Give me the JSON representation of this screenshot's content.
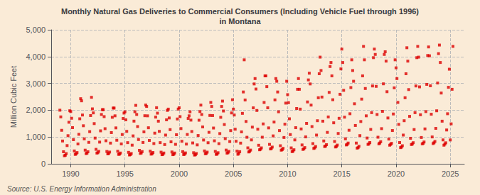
{
  "chart_data": {
    "type": "scatter",
    "title": "Monthly Natural Gas Deliveries to Commercial Consumers (Including Vehicle Fuel through 1996)\nin Montana",
    "ylabel": "Million Cubic Feet",
    "annotation": "Source: U.S. Energy Information Administration",
    "background_color": "#faebd7",
    "color": "#dd0000",
    "marker": "square",
    "grid": true,
    "xlim": [
      1988.2,
      2026.3
    ],
    "ylim": [
      0,
      5000
    ],
    "xticks": [
      1990,
      1995,
      2000,
      2005,
      2010,
      2015,
      2020,
      2025
    ],
    "yticks": [
      0,
      {
        "value": 1000,
        "label": "1,000"
      },
      {
        "value": 2000,
        "label": "2,000"
      },
      {
        "value": 3000,
        "label": "3,000"
      },
      {
        "value": 4000,
        "label": "4,000"
      },
      {
        "value": 5000,
        "label": "5,000"
      }
    ],
    "x": [
      1989,
      1989.0833333333333,
      1989.1666666666667,
      1989.25,
      1989.3333333333333,
      1989.4166666666667,
      1989.5,
      1989.5833333333333,
      1989.6666666666667,
      1989.75,
      1989.8333333333333,
      1989.9166666666667,
      1990,
      1990.0833333333333,
      1990.1666666666667,
      1990.25,
      1990.3333333333333,
      1990.4166666666667,
      1990.5,
      1990.5833333333333,
      1990.6666666666667,
      1990.75,
      1990.8333333333333,
      1990.9166666666667,
      1991,
      1991.0833333333333,
      1991.1666666666667,
      1991.25,
      1991.3333333333333,
      1991.4166666666667,
      1991.5,
      1991.5833333333333,
      1991.6666666666667,
      1991.75,
      1991.8333333333333,
      1991.9166666666667,
      1992,
      1992.0833333333333,
      1992.1666666666667,
      1992.25,
      1992.3333333333333,
      1992.4166666666667,
      1992.5,
      1992.5833333333333,
      1992.6666666666667,
      1992.75,
      1992.8333333333333,
      1992.9166666666667,
      1993,
      1993.0833333333333,
      1993.1666666666667,
      1993.25,
      1993.3333333333333,
      1993.4166666666667,
      1993.5,
      1993.5833333333333,
      1993.6666666666667,
      1993.75,
      1993.8333333333333,
      1993.9166666666667,
      1994,
      1994.0833333333333,
      1994.1666666666667,
      1994.25,
      1994.3333333333333,
      1994.4166666666667,
      1994.5,
      1994.5833333333333,
      1994.6666666666667,
      1994.75,
      1994.8333333333333,
      1994.9166666666667,
      1995,
      1995.0833333333333,
      1995.1666666666667,
      1995.25,
      1995.3333333333333,
      1995.4166666666667,
      1995.5,
      1995.5833333333333,
      1995.6666666666667,
      1995.75,
      1995.8333333333333,
      1995.9166666666667,
      1996,
      1996.0833333333333,
      1996.1666666666667,
      1996.25,
      1996.3333333333333,
      1996.4166666666667,
      1996.5,
      1996.5833333333333,
      1996.6666666666667,
      1996.75,
      1996.8333333333333,
      1996.9166666666667,
      1997,
      1997.0833333333333,
      1997.1666666666667,
      1997.25,
      1997.3333333333333,
      1997.4166666666667,
      1997.5,
      1997.5833333333333,
      1997.6666666666667,
      1997.75,
      1997.8333333333333,
      1997.9166666666667,
      1998,
      1998.0833333333333,
      1998.1666666666667,
      1998.25,
      1998.3333333333333,
      1998.4166666666667,
      1998.5,
      1998.5833333333333,
      1998.6666666666667,
      1998.75,
      1998.8333333333333,
      1998.9166666666667,
      1999,
      1999.0833333333333,
      1999.1666666666667,
      1999.25,
      1999.3333333333333,
      1999.4166666666667,
      1999.5,
      1999.5833333333333,
      1999.6666666666667,
      1999.75,
      1999.8333333333333,
      1999.9166666666667,
      2000,
      2000.0833333333333,
      2000.1666666666667,
      2000.25,
      2000.3333333333333,
      2000.4166666666667,
      2000.5,
      2000.5833333333333,
      2000.6666666666667,
      2000.75,
      2000.8333333333333,
      2000.9166666666667,
      2001,
      2001.0833333333333,
      2001.1666666666667,
      2001.25,
      2001.3333333333333,
      2001.4166666666667,
      2001.5,
      2001.5833333333333,
      2001.6666666666667,
      2001.75,
      2001.8333333333333,
      2001.9166666666667,
      2002,
      2002.0833333333333,
      2002.1666666666667,
      2002.25,
      2002.3333333333333,
      2002.4166666666667,
      2002.5,
      2002.5833333333333,
      2002.6666666666667,
      2002.75,
      2002.8333333333333,
      2002.9166666666667,
      2003,
      2003.0833333333333,
      2003.1666666666667,
      2003.25,
      2003.3333333333333,
      2003.4166666666667,
      2003.5,
      2003.5833333333333,
      2003.6666666666667,
      2003.75,
      2003.8333333333333,
      2003.9166666666667,
      2004,
      2004.0833333333333,
      2004.1666666666667,
      2004.25,
      2004.3333333333333,
      2004.4166666666667,
      2004.5,
      2004.5833333333333,
      2004.6666666666667,
      2004.75,
      2004.8333333333333,
      2004.9166666666667,
      2005,
      2005.0833333333333,
      2005.1666666666667,
      2005.25,
      2005.3333333333333,
      2005.4166666666667,
      2005.5,
      2005.5833333333333,
      2005.6666666666667,
      2005.75,
      2005.8333333333333,
      2005.9166666666667,
      2006,
      2006.0833333333333,
      2006.1666666666667,
      2006.25,
      2006.3333333333333,
      2006.4166666666667,
      2006.5,
      2006.5833333333333,
      2006.6666666666667,
      2006.75,
      2006.8333333333333,
      2006.9166666666667,
      2007,
      2007.0833333333333,
      2007.1666666666667,
      2007.25,
      2007.3333333333333,
      2007.4166666666667,
      2007.5,
      2007.5833333333333,
      2007.6666666666667,
      2007.75,
      2007.8333333333333,
      2007.9166666666667,
      2008,
      2008.0833333333333,
      2008.1666666666667,
      2008.25,
      2008.3333333333333,
      2008.4166666666667,
      2008.5,
      2008.5833333333333,
      2008.6666666666667,
      2008.75,
      2008.8333333333333,
      2008.9166666666667,
      2009,
      2009.0833333333333,
      2009.1666666666667,
      2009.25,
      2009.3333333333333,
      2009.4166666666667,
      2009.5,
      2009.5833333333333,
      2009.6666666666667,
      2009.75,
      2009.8333333333333,
      2009.9166666666667,
      2010,
      2010.0833333333333,
      2010.1666666666667,
      2010.25,
      2010.3333333333333,
      2010.4166666666667,
      2010.5,
      2010.5833333333333,
      2010.6666666666667,
      2010.75,
      2010.8333333333333,
      2010.9166666666667,
      2011,
      2011.0833333333333,
      2011.1666666666667,
      2011.25,
      2011.3333333333333,
      2011.4166666666667,
      2011.5,
      2011.5833333333333,
      2011.6666666666667,
      2011.75,
      2011.8333333333333,
      2011.9166666666667,
      2012,
      2012.0833333333333,
      2012.1666666666667,
      2012.25,
      2012.3333333333333,
      2012.4166666666667,
      2012.5,
      2012.5833333333333,
      2012.6666666666667,
      2012.75,
      2012.8333333333333,
      2012.9166666666667,
      2013,
      2013.0833333333333,
      2013.1666666666667,
      2013.25,
      2013.3333333333333,
      2013.4166666666667,
      2013.5,
      2013.5833333333333,
      2013.6666666666667,
      2013.75,
      2013.8333333333333,
      2013.9166666666667,
      2014,
      2014.0833333333333,
      2014.1666666666667,
      2014.25,
      2014.3333333333333,
      2014.4166666666667,
      2014.5,
      2014.5833333333333,
      2014.6666666666667,
      2014.75,
      2014.8333333333333,
      2014.9166666666667,
      2015,
      2015.0833333333333,
      2015.1666666666667,
      2015.25,
      2015.3333333333333,
      2015.4166666666667,
      2015.5,
      2015.5833333333333,
      2015.6666666666667,
      2015.75,
      2015.8333333333333,
      2015.9166666666667,
      2016,
      2016.0833333333333,
      2016.1666666666667,
      2016.25,
      2016.3333333333333,
      2016.4166666666667,
      2016.5,
      2016.5833333333333,
      2016.6666666666667,
      2016.75,
      2016.8333333333333,
      2016.9166666666667,
      2017,
      2017.0833333333333,
      2017.1666666666667,
      2017.25,
      2017.3333333333333,
      2017.4166666666667,
      2017.5,
      2017.5833333333333,
      2017.6666666666667,
      2017.75,
      2017.8333333333333,
      2017.9166666666667,
      2018,
      2018.0833333333333,
      2018.1666666666667,
      2018.25,
      2018.3333333333333,
      2018.4166666666667,
      2018.5,
      2018.5833333333333,
      2018.6666666666667,
      2018.75,
      2018.8333333333333,
      2018.9166666666667,
      2019,
      2019.0833333333333,
      2019.1666666666667,
      2019.25,
      2019.3333333333333,
      2019.4166666666667,
      2019.5,
      2019.5833333333333,
      2019.6666666666667,
      2019.75,
      2019.8333333333333,
      2019.9166666666667,
      2020,
      2020.0833333333333,
      2020.1666666666667,
      2020.25,
      2020.3333333333333,
      2020.4166666666667,
      2020.5,
      2020.5833333333333,
      2020.6666666666667,
      2020.75,
      2020.8333333333333,
      2020.9166666666667,
      2021,
      2021.0833333333333,
      2021.1666666666667,
      2021.25,
      2021.3333333333333,
      2021.4166666666667,
      2021.5,
      2021.5833333333333,
      2021.6666666666667,
      2021.75,
      2021.8333333333333,
      2021.9166666666667,
      2022,
      2022.0833333333333,
      2022.1666666666667,
      2022.25,
      2022.3333333333333,
      2022.4166666666667,
      2022.5,
      2022.5833333333333,
      2022.6666666666667,
      2022.75,
      2022.8333333333333,
      2022.9166666666667,
      2023,
      2023.0833333333333,
      2023.1666666666667,
      2023.25,
      2023.3333333333333,
      2023.4166666666667,
      2023.5,
      2023.5833333333333,
      2023.6666666666667,
      2023.75,
      2023.8333333333333,
      2023.9166666666667,
      2024,
      2024.0833333333333,
      2024.1666666666667,
      2024.25,
      2024.3333333333333,
      2024.4166666666667,
      2024.5,
      2024.5833333333333,
      2024.6666666666667,
      2024.75,
      2024.8333333333333,
      2024.9166666666667,
      2025,
      2025.0833333333333,
      2025.1666666666667,
      2025.25
    ],
    "values": [
      2000,
      1750,
      1250,
      850,
      450,
      300,
      320,
      380,
      680,
      1050,
      1550,
      1980,
      1950,
      1700,
      1350,
      900,
      480,
      350,
      370,
      420,
      740,
      1100,
      1680,
      2430,
      2350,
      1820,
      1420,
      930,
      510,
      380,
      400,
      450,
      800,
      1200,
      1800,
      2480,
      2050,
      1900,
      1500,
      960,
      540,
      400,
      415,
      465,
      810,
      1230,
      1840,
      2020,
      2020,
      1760,
      1310,
      860,
      460,
      370,
      385,
      438,
      772,
      1165,
      1735,
      2080,
      2080,
      1790,
      1340,
      880,
      468,
      352,
      362,
      402,
      742,
      1092,
      1692,
      1892,
      1940,
      1640,
      1210,
      790,
      428,
      330,
      342,
      384,
      696,
      1042,
      1592,
      1942,
      2180,
      1840,
      1390,
      905,
      502,
      388,
      404,
      456,
      796,
      1192,
      1794,
      2192,
      2140,
      1790,
      1345,
      872,
      472,
      360,
      372,
      422,
      756,
      1144,
      1742,
      2092,
      1890,
      1590,
      1210,
      790,
      435,
      342,
      355,
      402,
      718,
      1072,
      1640,
      1992,
      2040,
      1710,
      1275,
      820,
      442,
      342,
      356,
      402,
      726,
      1085,
      1672,
      2042,
      2090,
      1760,
      1315,
      840,
      452,
      346,
      360,
      406,
      736,
      1094,
      1692,
      1790,
      1940,
      1630,
      1205,
      778,
      414,
      326,
      340,
      384,
      706,
      1056,
      1626,
      1950,
      2190,
      1840,
      1375,
      888,
      480,
      374,
      388,
      436,
      786,
      1174,
      1804,
      2290,
      2140,
      1800,
      1335,
      858,
      462,
      352,
      365,
      414,
      752,
      1128,
      1734,
      2140,
      2340,
      1970,
      1465,
      940,
      512,
      398,
      414,
      463,
      830,
      1238,
      1898,
      2390,
      2040,
      1820,
      1290,
      840,
      472,
      355,
      392,
      452,
      772,
      1190,
      1882,
      2680,
      3880,
      2380,
      1580,
      990,
      595,
      442,
      465,
      512,
      892,
      1368,
      2088,
      2980,
      3180,
      2790,
      1990,
      1290,
      692,
      524,
      544,
      594,
      992,
      1488,
      2288,
      3280,
      3280,
      2880,
      2090,
      1340,
      724,
      554,
      574,
      624,
      1042,
      1558,
      2384,
      3180,
      3080,
      2680,
      1940,
      1240,
      674,
      508,
      528,
      578,
      982,
      1478,
      2264,
      3080,
      2580,
      2280,
      1680,
      1090,
      594,
      454,
      474,
      524,
      892,
      1348,
      2064,
      2780,
      3180,
      2780,
      2040,
      1300,
      704,
      536,
      556,
      606,
      1004,
      1508,
      2308,
      3130,
      3380,
      2980,
      2190,
      1390,
      754,
      574,
      594,
      644,
      1072,
      1608,
      2464,
      3360,
      3980,
      3480,
      2490,
      1590,
      852,
      644,
      664,
      714,
      1172,
      1748,
      2664,
      3630,
      3780,
      3280,
      2390,
      1530,
      832,
      628,
      648,
      698,
      1132,
      1698,
      2594,
      3540,
      4280,
      3780,
      2740,
      1740,
      932,
      704,
      724,
      774,
      1252,
      1868,
      2844,
      3880,
      3480,
      3080,
      2240,
      1430,
      774,
      584,
      604,
      654,
      1052,
      1578,
      2414,
      3280,
      4380,
      3880,
      2810,
      1790,
      962,
      724,
      744,
      794,
      1282,
      1908,
      2904,
      3960,
      4280,
      4080,
      2890,
      1840,
      992,
      744,
      774,
      824,
      1312,
      1958,
      2984,
      4080,
      4180,
      3830,
      2690,
      1710,
      922,
      694,
      724,
      764,
      1242,
      1858,
      2834,
      3880,
      3580,
      3180,
      2290,
      1470,
      794,
      604,
      624,
      674,
      1072,
      1608,
      2464,
      3360,
      4330,
      3830,
      2770,
      1770,
      952,
      718,
      738,
      788,
      1278,
      1908,
      2904,
      3960,
      4380,
      3980,
      2870,
      1830,
      982,
      744,
      764,
      814,
      1302,
      1948,
      2964,
      4040,
      4360,
      4030,
      2910,
      1850,
      1002,
      754,
      784,
      834,
      1322,
      1978,
      3014,
      4110,
      4430,
      3780,
      2640,
      1590,
      892,
      694,
      734,
      784,
      1262,
      1868,
      2854,
      3530,
      890,
      1490,
      2780,
      4380
    ]
  }
}
